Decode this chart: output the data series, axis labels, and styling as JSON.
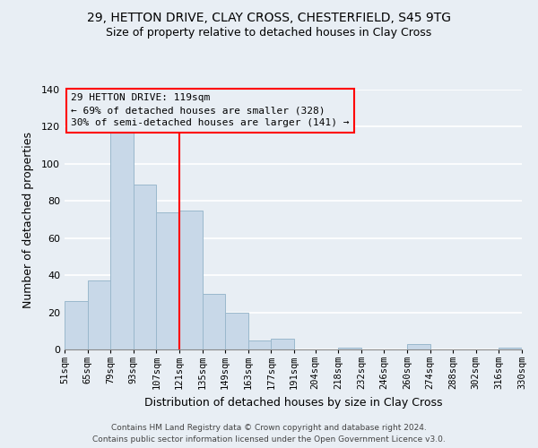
{
  "title1": "29, HETTON DRIVE, CLAY CROSS, CHESTERFIELD, S45 9TG",
  "title2": "Size of property relative to detached houses in Clay Cross",
  "xlabel": "Distribution of detached houses by size in Clay Cross",
  "ylabel": "Number of detached properties",
  "bar_left_edges": [
    51,
    65,
    79,
    93,
    107,
    121,
    135,
    149,
    163,
    177,
    191,
    204,
    218,
    232,
    246,
    260,
    274,
    288,
    302,
    316
  ],
  "bar_heights": [
    26,
    37,
    118,
    89,
    74,
    75,
    30,
    20,
    5,
    6,
    0,
    0,
    1,
    0,
    0,
    3,
    0,
    0,
    0,
    1
  ],
  "bar_widths": [
    14,
    14,
    14,
    14,
    14,
    14,
    14,
    14,
    14,
    14,
    13,
    14,
    14,
    14,
    14,
    14,
    14,
    14,
    14,
    14
  ],
  "bar_color": "#c8d8e8",
  "bar_edgecolor": "#9ab8cc",
  "tick_labels": [
    "51sqm",
    "65sqm",
    "79sqm",
    "93sqm",
    "107sqm",
    "121sqm",
    "135sqm",
    "149sqm",
    "163sqm",
    "177sqm",
    "191sqm",
    "204sqm",
    "218sqm",
    "232sqm",
    "246sqm",
    "260sqm",
    "274sqm",
    "288sqm",
    "302sqm",
    "316sqm",
    "330sqm"
  ],
  "tick_positions": [
    51,
    65,
    79,
    93,
    107,
    121,
    135,
    149,
    163,
    177,
    191,
    204,
    218,
    232,
    246,
    260,
    274,
    288,
    302,
    316,
    330
  ],
  "red_line_x": 121,
  "xlim": [
    51,
    330
  ],
  "ylim": [
    0,
    140
  ],
  "yticks": [
    0,
    20,
    40,
    60,
    80,
    100,
    120,
    140
  ],
  "annotation_line1": "29 HETTON DRIVE: 119sqm",
  "annotation_line2": "← 69% of detached houses are smaller (328)",
  "annotation_line3": "30% of semi-detached houses are larger (141) →",
  "background_color": "#e8eef4",
  "grid_color": "#ffffff",
  "footer1": "Contains HM Land Registry data © Crown copyright and database right 2024.",
  "footer2": "Contains public sector information licensed under the Open Government Licence v3.0."
}
